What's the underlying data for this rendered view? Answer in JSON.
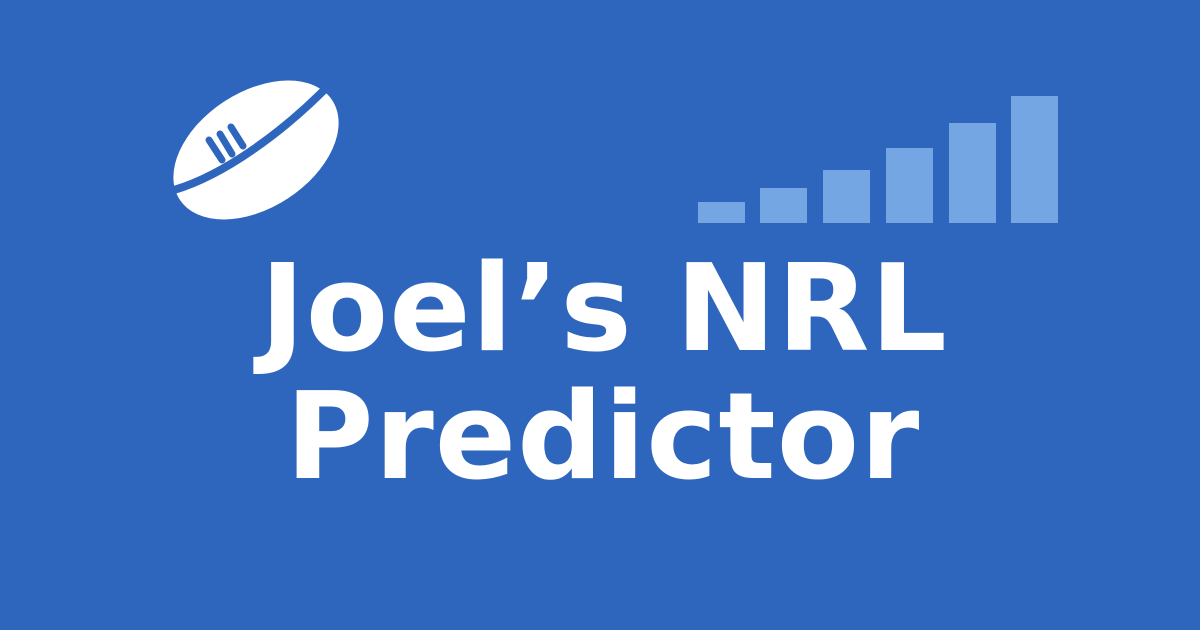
{
  "title": {
    "line1": "Joel’s NRL",
    "line2": "Predictor"
  },
  "icons": {
    "ball": "rugby-ball-icon",
    "bars": "bar-chart-icon"
  },
  "colors": {
    "background": "#2f66bd",
    "text": "#ffffff",
    "bars": "#73a6e3"
  }
}
